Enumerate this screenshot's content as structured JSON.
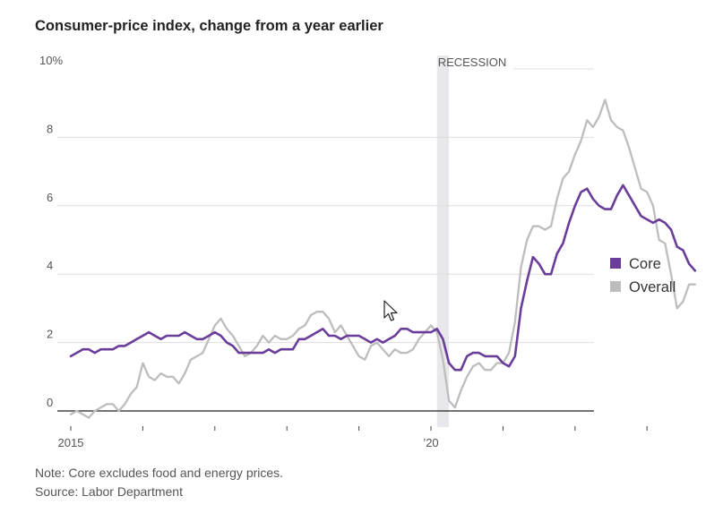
{
  "title": "Consumer-price index, change from a year earlier",
  "note": "Note: Core excludes food and energy prices.",
  "source": "Source: Labor Department",
  "recession_label": "RECESSION",
  "colors": {
    "core": "#6a3d9a",
    "overall": "#bdbdbd",
    "recession": "#e8e8ec",
    "grid": "#dddddd",
    "axis": "#222222"
  },
  "chart_data": {
    "type": "line",
    "title": "Consumer-price index, change from a year earlier",
    "xlim": [
      "2015-01",
      "2023-08"
    ],
    "ylim": [
      0,
      10
    ],
    "y_ticks": [
      0,
      2,
      4,
      6,
      8,
      10
    ],
    "y_tick_labels": [
      "0",
      "2",
      "4",
      "6",
      "8",
      "10%"
    ],
    "x_tick_labels": [
      {
        "date": "2015-01",
        "label": "2015"
      },
      {
        "date": "2020-01",
        "label": "’20"
      }
    ],
    "x_minor_ticks": [
      "2016-01",
      "2017-01",
      "2018-01",
      "2019-01",
      "2021-01",
      "2022-01",
      "2023-01"
    ],
    "recession": {
      "start": "2020-02",
      "end": "2020-04",
      "label": "RECESSION"
    },
    "grid": true,
    "legend": "right",
    "series": [
      {
        "name": "Core",
        "start": "2015-01",
        "values": [
          1.6,
          1.7,
          1.8,
          1.8,
          1.7,
          1.8,
          1.8,
          1.8,
          1.9,
          1.9,
          2.0,
          2.1,
          2.2,
          2.3,
          2.2,
          2.1,
          2.2,
          2.2,
          2.2,
          2.3,
          2.2,
          2.1,
          2.1,
          2.2,
          2.3,
          2.2,
          2.0,
          1.9,
          1.7,
          1.7,
          1.7,
          1.7,
          1.7,
          1.8,
          1.7,
          1.8,
          1.8,
          1.8,
          2.1,
          2.1,
          2.2,
          2.3,
          2.4,
          2.2,
          2.2,
          2.1,
          2.2,
          2.2,
          2.2,
          2.1,
          2.0,
          2.1,
          2.0,
          2.1,
          2.2,
          2.4,
          2.4,
          2.3,
          2.3,
          2.3,
          2.3,
          2.4,
          2.1,
          1.4,
          1.2,
          1.2,
          1.6,
          1.7,
          1.7,
          1.6,
          1.6,
          1.6,
          1.4,
          1.3,
          1.6,
          3.0,
          3.8,
          4.5,
          4.3,
          4.0,
          4.0,
          4.6,
          4.9,
          5.5,
          6.0,
          6.4,
          6.5,
          6.2,
          6.0,
          5.9,
          5.9,
          6.3,
          6.6,
          6.3,
          6.0,
          5.7,
          5.6,
          5.5,
          5.6,
          5.5,
          5.3,
          4.8,
          4.7,
          4.3,
          4.1
        ]
      },
      {
        "name": "Overall",
        "start": "2015-01",
        "values": [
          -0.1,
          0.0,
          -0.1,
          -0.2,
          0.0,
          0.1,
          0.2,
          0.2,
          0.0,
          0.2,
          0.5,
          0.7,
          1.4,
          1.0,
          0.9,
          1.1,
          1.0,
          1.0,
          0.8,
          1.1,
          1.5,
          1.6,
          1.7,
          2.1,
          2.5,
          2.7,
          2.4,
          2.2,
          1.9,
          1.6,
          1.7,
          1.9,
          2.2,
          2.0,
          2.2,
          2.1,
          2.1,
          2.2,
          2.4,
          2.5,
          2.8,
          2.9,
          2.9,
          2.7,
          2.3,
          2.5,
          2.2,
          1.9,
          1.6,
          1.5,
          1.9,
          2.0,
          1.8,
          1.6,
          1.8,
          1.7,
          1.7,
          1.8,
          2.1,
          2.3,
          2.5,
          2.3,
          1.5,
          0.3,
          0.1,
          0.6,
          1.0,
          1.3,
          1.4,
          1.2,
          1.2,
          1.4,
          1.4,
          1.7,
          2.6,
          4.2,
          5.0,
          5.4,
          5.4,
          5.3,
          5.4,
          6.2,
          6.8,
          7.0,
          7.5,
          7.9,
          8.5,
          8.3,
          8.6,
          9.1,
          8.5,
          8.3,
          8.2,
          7.7,
          7.1,
          6.5,
          6.4,
          6.0,
          5.0,
          4.9,
          4.0,
          3.0,
          3.2,
          3.7,
          3.7
        ]
      }
    ]
  }
}
